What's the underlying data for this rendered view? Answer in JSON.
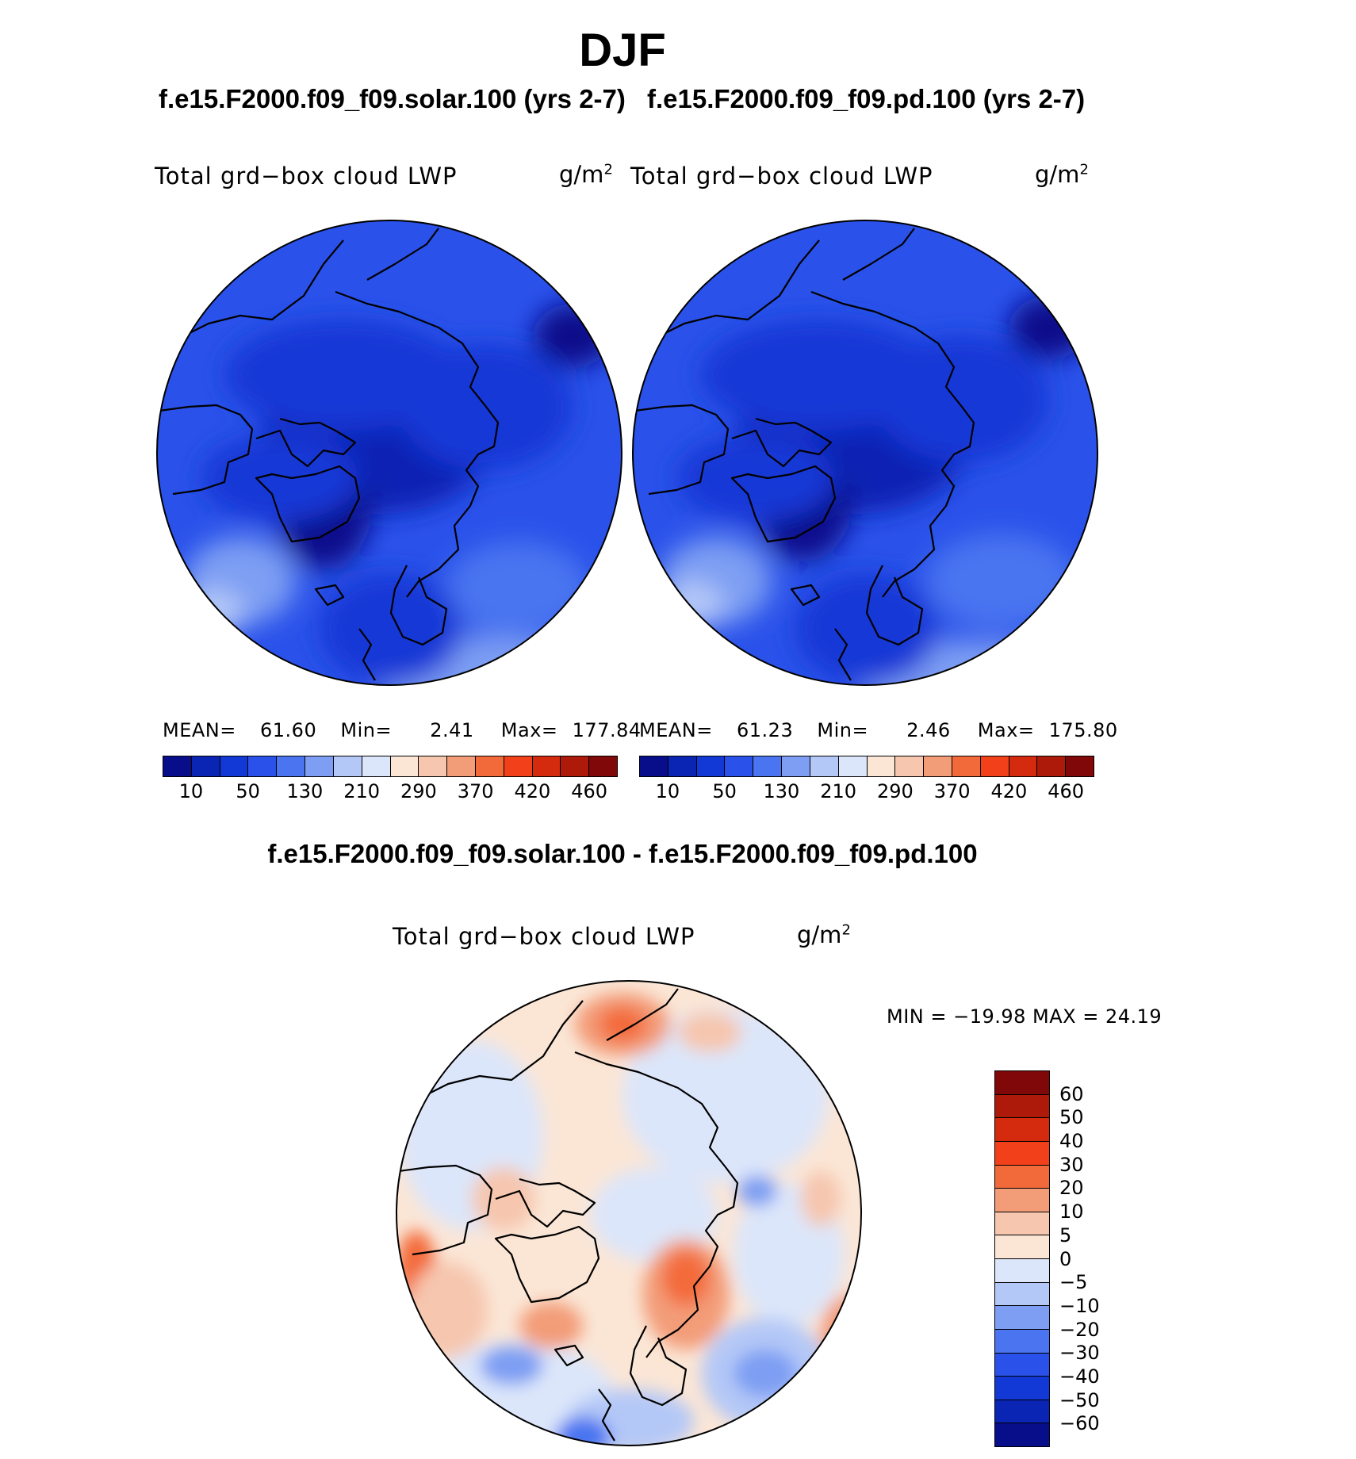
{
  "season": "DJF",
  "panels": [
    {
      "case": "f.e15.F2000.f09_f09.solar.100 (yrs 2-7)",
      "variable": "Total grd−box cloud LWP",
      "units": "g/m",
      "units_exp": "2",
      "stats": {
        "mean_label": "MEAN=",
        "mean": "61.60",
        "min_label": "Min=",
        "min": "2.41",
        "max_label": "Max=",
        "max": "177.84"
      },
      "colorbar_ticks": [
        "10",
        "50",
        "130",
        "210",
        "290",
        "370",
        "420",
        "460"
      ],
      "map_description": "North polar stereographic cloud liquid water path field"
    },
    {
      "case": "f.e15.F2000.f09_f09.pd.100 (yrs 2-7)",
      "variable": "Total grd−box cloud LWP",
      "units": "g/m",
      "units_exp": "2",
      "stats": {
        "mean_label": "MEAN=",
        "mean": "61.23",
        "min_label": "Min=",
        "min": "2.46",
        "max_label": "Max=",
        "max": "175.80"
      },
      "colorbar_ticks": [
        "10",
        "50",
        "130",
        "210",
        "290",
        "370",
        "420",
        "460"
      ],
      "map_description": "North polar stereographic cloud liquid water path field"
    }
  ],
  "abs_colors": [
    "#080d8a",
    "#0a24b4",
    "#1238d6",
    "#2a52ea",
    "#4a74f0",
    "#7d9ef3",
    "#b4c8f7",
    "#dce6fa",
    "#fbe6d6",
    "#f6c6ae",
    "#f39c78",
    "#f36a3a",
    "#f2411a",
    "#d42a0e",
    "#ad1a0a",
    "#800808"
  ],
  "difference": {
    "title": "f.e15.F2000.f09_f09.solar.100 - f.e15.F2000.f09_f09.pd.100",
    "variable": "Total grd−box cloud LWP",
    "units": "g/m",
    "units_exp": "2",
    "minmax": "MIN = −19.98 MAX =   24.19",
    "colorbar_ticks": [
      "60",
      "50",
      "40",
      "30",
      "20",
      "10",
      "5",
      "0",
      "−5",
      "−10",
      "−20",
      "−30",
      "−40",
      "−50",
      "−60"
    ],
    "colors_top_to_bottom": [
      "#800808",
      "#ad1a0a",
      "#d42a0e",
      "#f2411a",
      "#f36a3a",
      "#f39c78",
      "#f6c6ae",
      "#fbe6d6",
      "#dce6fa",
      "#b4c8f7",
      "#7d9ef3",
      "#4a74f0",
      "#2a52ea",
      "#1238d6",
      "#0a24b4",
      "#080d8a"
    ]
  }
}
